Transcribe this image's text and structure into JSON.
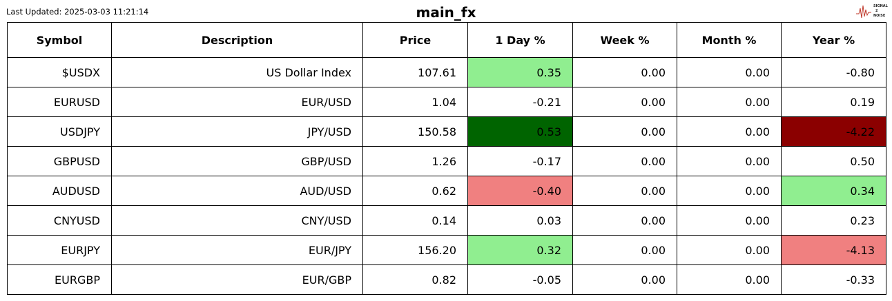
{
  "header": {
    "last_updated": "Last Updated: 2025-03-03 11:21:14",
    "title": "main_fx",
    "logo": [
      "SIGNAL",
      "2",
      "NOISE"
    ]
  },
  "table": {
    "columns": [
      "Symbol",
      "Description",
      "Price",
      "1 Day %",
      "Week %",
      "Month %",
      "Year %"
    ],
    "rows": [
      [
        "$USDX",
        "US Dollar Index",
        "107.61",
        {
          "text": "0.35",
          "color": "#90ee90"
        },
        "0.00",
        "0.00",
        "-0.80"
      ],
      [
        "EURUSD",
        "EUR/USD",
        "1.04",
        "-0.21",
        "0.00",
        "0.00",
        "0.19"
      ],
      [
        "USDJPY",
        "JPY/USD",
        "150.58",
        {
          "text": "0.53",
          "color": "#006400"
        },
        "0.00",
        "0.00",
        {
          "text": "-4.22",
          "color": "#8b0000"
        }
      ],
      [
        "GBPUSD",
        "GBP/USD",
        "1.26",
        "-0.17",
        "0.00",
        "0.00",
        "0.50"
      ],
      [
        "AUDUSD",
        "AUD/USD",
        "0.62",
        {
          "text": "-0.40",
          "color": "#f08080"
        },
        "0.00",
        "0.00",
        {
          "text": "0.34",
          "color": "#90ee90"
        }
      ],
      [
        "CNYUSD",
        "CNY/USD",
        "0.14",
        "0.03",
        "0.00",
        "0.00",
        "0.23"
      ],
      [
        "EURJPY",
        "EUR/JPY",
        "156.20",
        {
          "text": "0.32",
          "color": "#90ee90"
        },
        "0.00",
        "0.00",
        {
          "text": "-4.13",
          "color": "#f08080"
        }
      ],
      [
        "EURGBP",
        "EUR/GBP",
        "0.82",
        "-0.05",
        "0.00",
        "0.00",
        "-0.33"
      ]
    ]
  }
}
